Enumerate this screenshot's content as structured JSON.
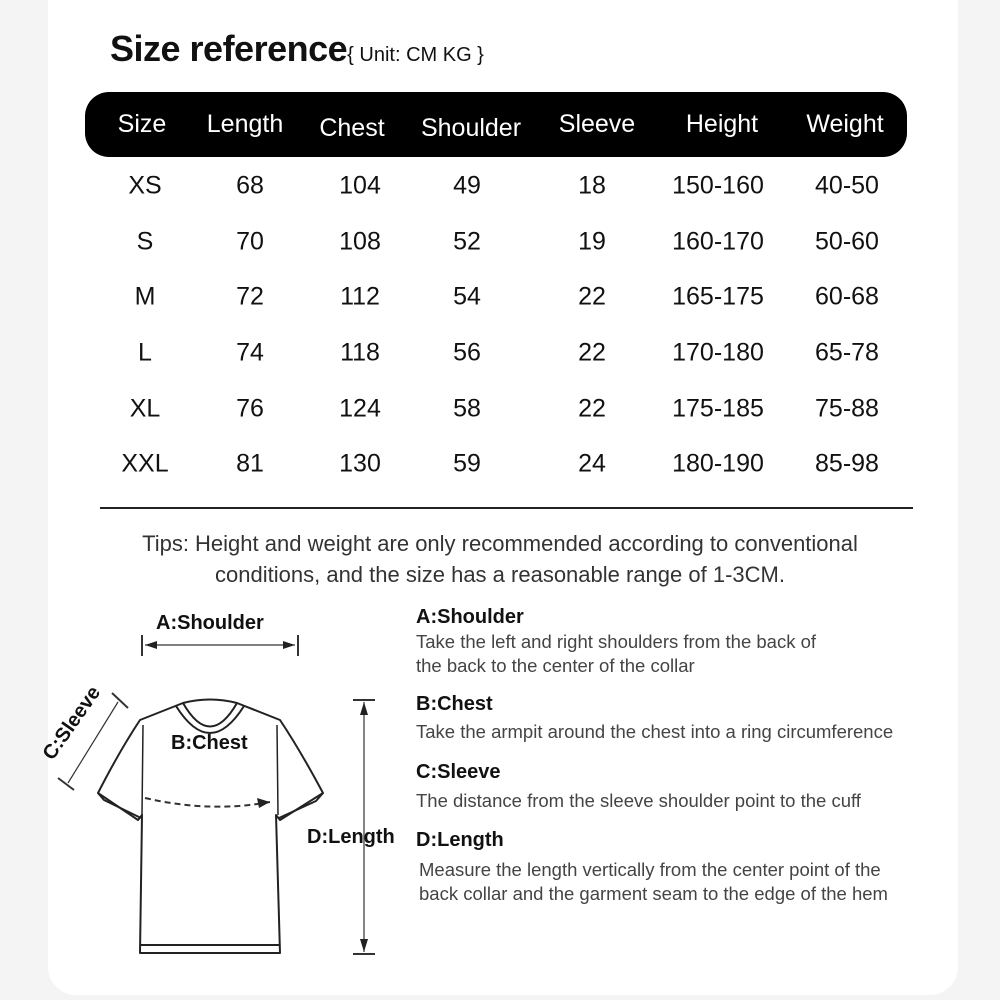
{
  "title": "Size reference",
  "unit": "{ Unit: CM KG }",
  "table": {
    "headers": [
      "Size",
      "Length",
      "Chest",
      "Shoulder",
      "Sleeve",
      "Height",
      "Weight"
    ],
    "rows": [
      [
        "XS",
        "68",
        "104",
        "49",
        "18",
        "150-160",
        "40-50"
      ],
      [
        "S",
        "70",
        "108",
        "52",
        "19",
        "160-170",
        "50-60"
      ],
      [
        "M",
        "72",
        "112",
        "54",
        "22",
        "165-175",
        "60-68"
      ],
      [
        "L",
        "74",
        "118",
        "56",
        "22",
        "170-180",
        "65-78"
      ],
      [
        "XL",
        "76",
        "124",
        "58",
        "22",
        "175-185",
        "75-88"
      ],
      [
        "XXL",
        "81",
        "130",
        "59",
        "24",
        "180-190",
        "85-98"
      ]
    ]
  },
  "tips": [
    "Tips: Height and weight are only recommended according to conventional",
    "conditions, and the size has a reasonable range of 1-3CM."
  ],
  "diagram_labels": {
    "shoulder": "A:Shoulder",
    "chest": "B:Chest",
    "sleeve": "C:Sleeve",
    "length": "D:Length"
  },
  "descriptions": [
    {
      "heading": "A:Shoulder",
      "lines": [
        "Take the left and right shoulders from the back of",
        "the back to the center of the collar"
      ]
    },
    {
      "heading": "B:Chest",
      "lines": [
        "Take the armpit around the chest into a ring circumference"
      ]
    },
    {
      "heading": "C:Sleeve",
      "lines": [
        "The distance from the sleeve shoulder point to the cuff"
      ]
    },
    {
      "heading": "D:Length",
      "lines": [
        "Measure the length vertically from the center point of the",
        "back collar and the garment seam to the edge of the hem"
      ]
    }
  ],
  "colors": {
    "header_bg": "#000000",
    "page_bg": "#f4f4f4",
    "card_bg": "#ffffff"
  }
}
